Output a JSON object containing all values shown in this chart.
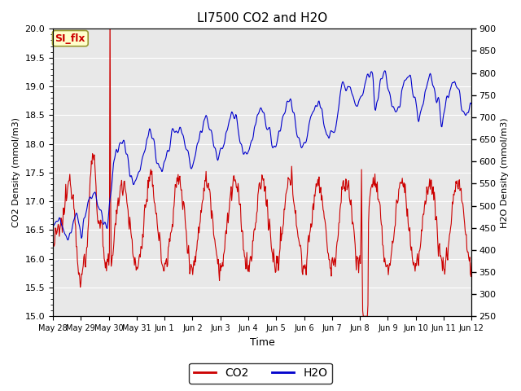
{
  "title": "LI7500 CO2 and H2O",
  "xlabel": "Time",
  "ylabel_left": "CO2 Density (mmol/m3)",
  "ylabel_right": "H2O Density (mmol/m3)",
  "annotation_text": "SI_flx",
  "annotation_color": "#cc0000",
  "annotation_bg": "#ffffcc",
  "annotation_border": "#999933",
  "left_ylim": [
    15.0,
    20.0
  ],
  "right_ylim": [
    250,
    900
  ],
  "co2_color": "#cc0000",
  "h2o_color": "#0000cc",
  "bg_color": "#e8e8e8",
  "xtick_labels": [
    "May 28",
    "May 29",
    "May 30",
    "May 31",
    "Jun 1",
    "Jun 2",
    "Jun 3",
    "Jun 4",
    "Jun 5",
    "Jun 6",
    "Jun 7",
    "Jun 8",
    "Jun 9",
    "Jun 10",
    "Jun 11",
    "Jun 12"
  ],
  "legend_co2": "CO2",
  "legend_h2o": "H2O",
  "linewidth": 0.8
}
